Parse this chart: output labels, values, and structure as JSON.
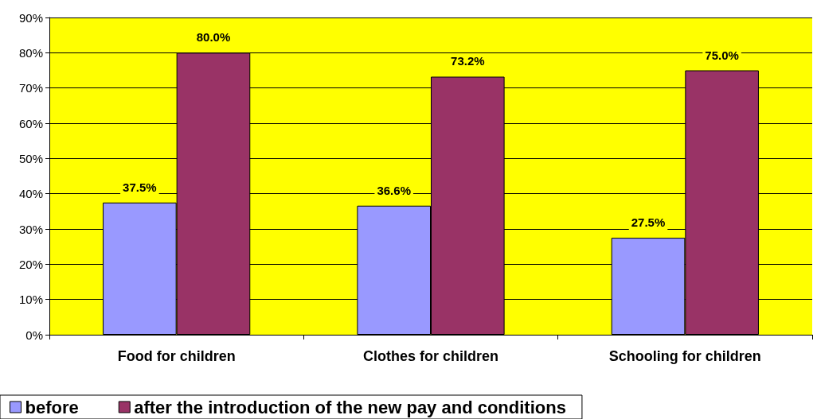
{
  "chart_data": {
    "type": "bar",
    "categories": [
      "Food for children",
      "Clothes for children",
      "Schooling for children"
    ],
    "series": [
      {
        "name": "before",
        "color": "#9999ff",
        "values": [
          37.5,
          36.6,
          27.5
        ],
        "value_labels": [
          "37.5%",
          "36.6%",
          "27.5%"
        ]
      },
      {
        "name": "after the introduction of the new pay and conditions",
        "color": "#993366",
        "values": [
          80.0,
          73.2,
          75.0
        ],
        "value_labels": [
          "80.0%",
          "73.2%",
          "75.0%"
        ]
      }
    ],
    "ylim": [
      0,
      90
    ],
    "yticks": [
      {
        "value": 0,
        "label": "0%"
      },
      {
        "value": 10,
        "label": "10%"
      },
      {
        "value": 20,
        "label": "20%"
      },
      {
        "value": 30,
        "label": "30%"
      },
      {
        "value": 40,
        "label": "40%"
      },
      {
        "value": 50,
        "label": "50%"
      },
      {
        "value": 60,
        "label": "60%"
      },
      {
        "value": 70,
        "label": "70%"
      },
      {
        "value": 80,
        "label": "80%"
      },
      {
        "value": 90,
        "label": "90%"
      }
    ],
    "grid": "y",
    "legend": "bottom left"
  }
}
